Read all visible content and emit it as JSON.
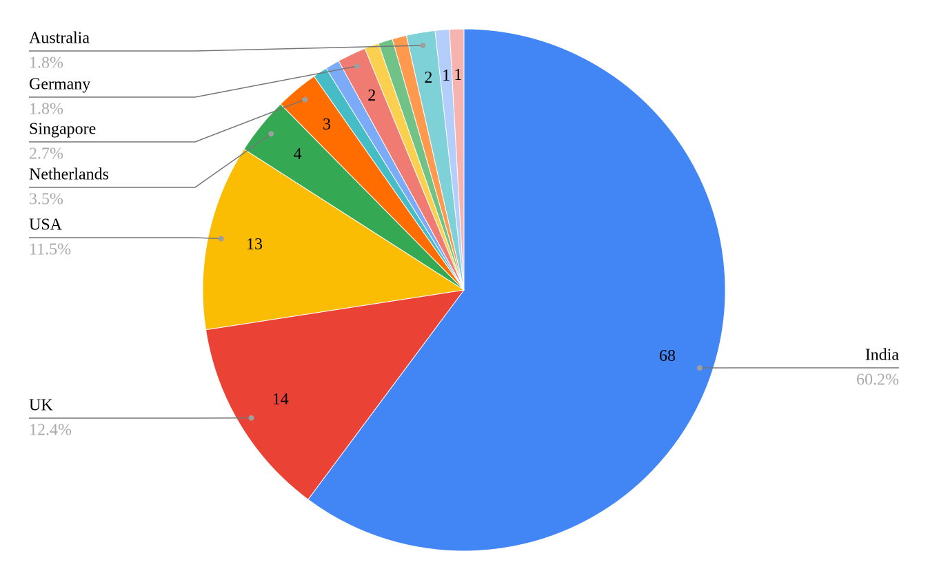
{
  "chart_data": {
    "type": "pie",
    "categories": [
      "India",
      "UK",
      "USA",
      "Netherlands",
      "Singapore",
      null,
      null,
      "Germany",
      null,
      null,
      null,
      "Australia",
      null,
      null
    ],
    "values": [
      68,
      14,
      13,
      4,
      3,
      1,
      1,
      2,
      1,
      1,
      1,
      2,
      1,
      1
    ],
    "value_labels": [
      "60.2%",
      "12.4%",
      "11.5%",
      "3.5%",
      "2.7%",
      null,
      null,
      "1.8%",
      null,
      null,
      null,
      "1.8%",
      null,
      null
    ],
    "data_labels": [
      68,
      14,
      13,
      4,
      3,
      null,
      null,
      2,
      null,
      null,
      null,
      2,
      1,
      1
    ],
    "colors": [
      "#4285f4",
      "#ea4335",
      "#fbbc04",
      "#34a853",
      "#ff6d01",
      "#46bdc6",
      "#7baaf7",
      "#f07b72",
      "#fcd04f",
      "#71c287",
      "#ff994d",
      "#7ed1d7",
      "#b3cefb",
      "#f7b4ae"
    ]
  }
}
